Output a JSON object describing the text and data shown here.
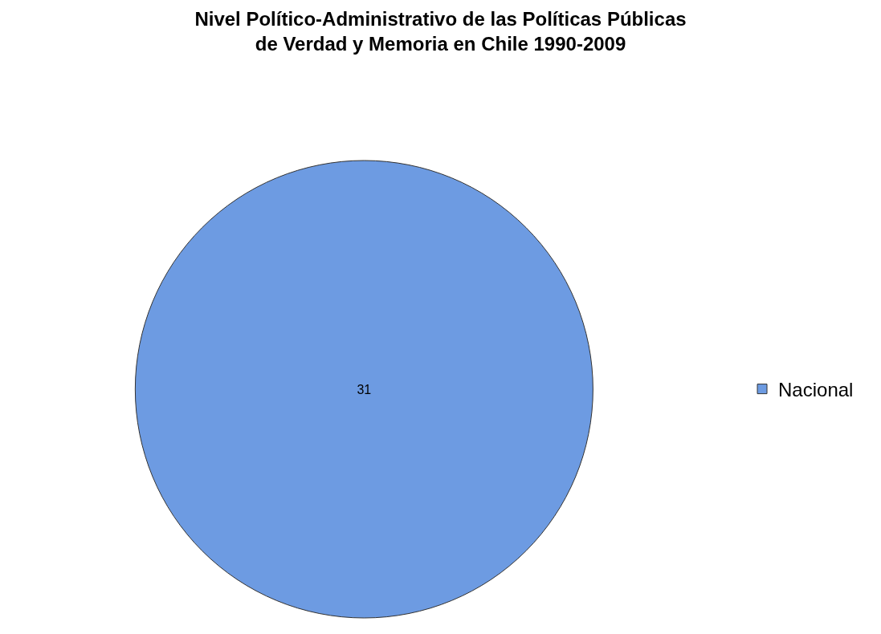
{
  "chart_data": {
    "type": "pie",
    "title": "Nivel Político-Administrativo de las Políticas Públicas\nde Verdad y Memoria en Chile 1990-2009",
    "categories": [
      "Nacional"
    ],
    "values": [
      31
    ],
    "colors": [
      "#6d9be2"
    ],
    "data_labels": true,
    "legend": "right"
  }
}
